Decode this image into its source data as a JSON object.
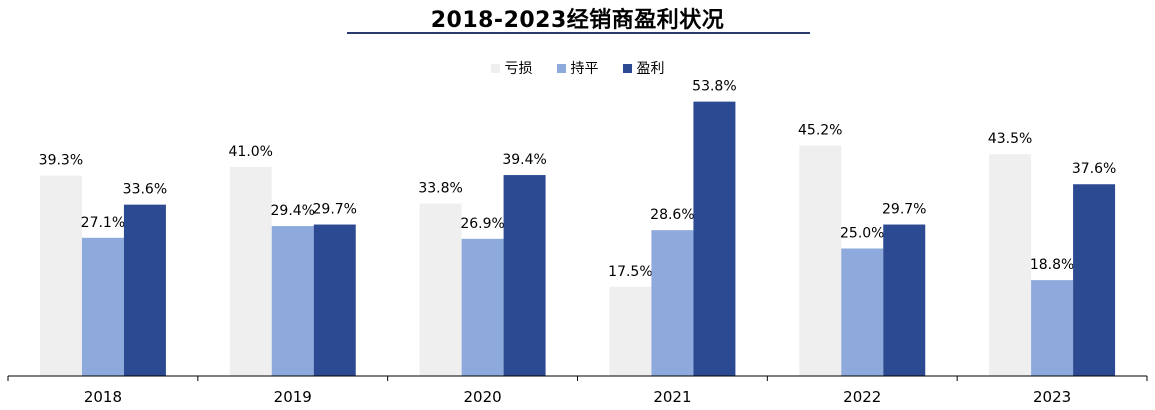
{
  "chart_data": {
    "type": "bar",
    "title": "2018-2023经销商盈利状况",
    "categories": [
      "2018",
      "2019",
      "2020",
      "2021",
      "2022",
      "2023"
    ],
    "series": [
      {
        "name": "亏损",
        "color": "#efefef",
        "values": [
          39.3,
          41.0,
          33.8,
          17.5,
          45.2,
          43.5
        ]
      },
      {
        "name": "持平",
        "color": "#8eaadc",
        "values": [
          27.1,
          29.4,
          26.9,
          28.6,
          25.0,
          18.8
        ]
      },
      {
        "name": "盈利",
        "color": "#2b4a92",
        "values": [
          33.6,
          29.7,
          39.4,
          53.8,
          29.7,
          37.6
        ]
      }
    ],
    "value_suffix": "%",
    "ylim": [
      0,
      60
    ],
    "grid": false,
    "legend_position": "top-center"
  }
}
